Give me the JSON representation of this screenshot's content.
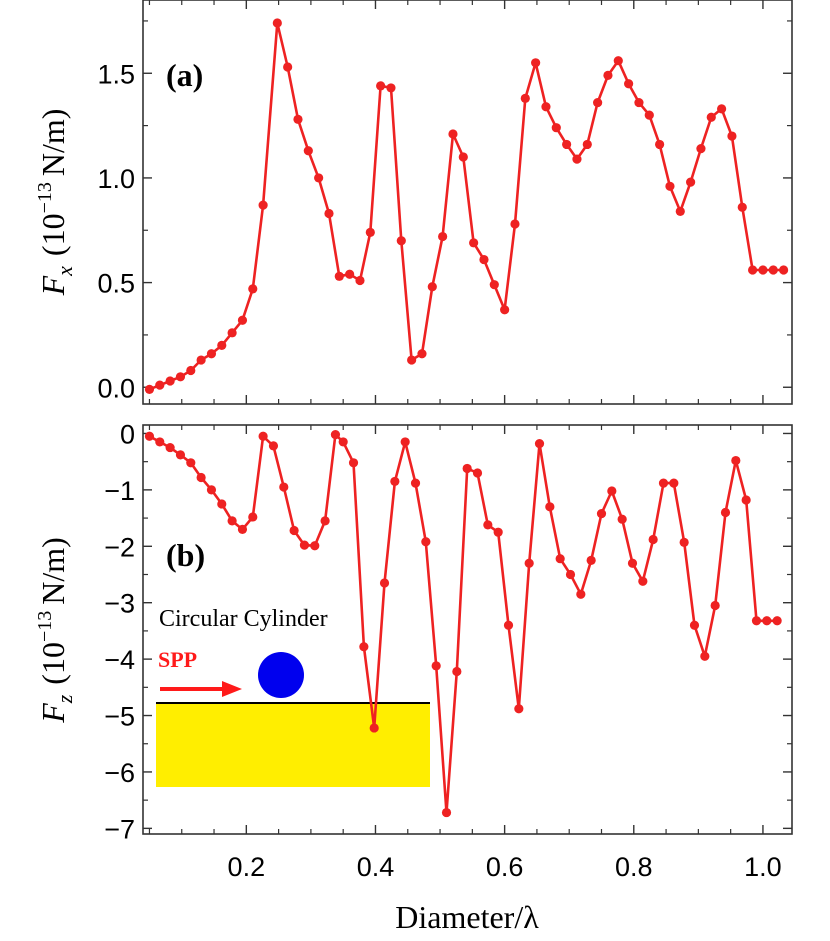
{
  "colors": {
    "series": "#ee2222",
    "substrate": "#ffee00",
    "particle": "#0000ee",
    "spp": "#ff1a1a"
  },
  "x_axis": {
    "label": "Diameter/λ",
    "ticks": [
      0.2,
      0.4,
      0.6,
      0.8,
      1.0
    ],
    "tick_labels": [
      "0.2",
      "0.4",
      "0.6",
      "0.8",
      "1.0"
    ]
  },
  "inset": {
    "title": "Circular Cylinder",
    "arrow_label": "SPP"
  },
  "chart_data": [
    {
      "type": "line",
      "panel_label": "(a)",
      "ylabel_symbol": "F",
      "ylabel_sub": "x",
      "ylabel_unit_pre": "(10",
      "ylabel_exp": "−13",
      "ylabel_unit_post": "N/m)",
      "xlim": [
        0.04,
        1.045
      ],
      "ylim": [
        -0.08,
        1.85
      ],
      "yticks": [
        0.0,
        0.5,
        1.0,
        1.5
      ],
      "ytick_labels": [
        "0.0",
        "0.5",
        "1.0",
        "1.5"
      ],
      "x": [
        0.05,
        0.066,
        0.082,
        0.098,
        0.114,
        0.13,
        0.146,
        0.162,
        0.178,
        0.194,
        0.21,
        0.226,
        0.248,
        0.264,
        0.28,
        0.296,
        0.312,
        0.328,
        0.344,
        0.36,
        0.376,
        0.392,
        0.408,
        0.424,
        0.44,
        0.456,
        0.472,
        0.488,
        0.504,
        0.52,
        0.536,
        0.552,
        0.568,
        0.584,
        0.6,
        0.616,
        0.632,
        0.648,
        0.664,
        0.68,
        0.696,
        0.712,
        0.728,
        0.744,
        0.76,
        0.776,
        0.792,
        0.808,
        0.824,
        0.84,
        0.856,
        0.872,
        0.888,
        0.904,
        0.92,
        0.936,
        0.952,
        0.968,
        0.984,
        1.0,
        1.016,
        1.032
      ],
      "y": [
        -0.01,
        0.01,
        0.03,
        0.05,
        0.08,
        0.13,
        0.16,
        0.2,
        0.26,
        0.32,
        0.47,
        0.87,
        1.74,
        1.53,
        1.28,
        1.13,
        1.0,
        0.83,
        0.53,
        0.54,
        0.51,
        0.74,
        1.44,
        1.43,
        0.7,
        0.13,
        0.16,
        0.48,
        0.72,
        1.21,
        1.1,
        0.69,
        0.61,
        0.49,
        0.37,
        0.78,
        1.38,
        1.55,
        1.34,
        1.24,
        1.16,
        1.09,
        1.16,
        1.36,
        1.49,
        1.56,
        1.45,
        1.36,
        1.3,
        1.16,
        0.96,
        0.84,
        0.98,
        1.14,
        1.29,
        1.33,
        1.2,
        0.86,
        0.56,
        0.56,
        0.56,
        0.56
      ],
      "title": "",
      "xlabel": "",
      "grid": false
    },
    {
      "type": "line",
      "panel_label": "(b)",
      "ylabel_symbol": "F",
      "ylabel_sub": "z",
      "ylabel_unit_pre": "(10",
      "ylabel_exp": "−13",
      "ylabel_unit_post": "N/m)",
      "xlim": [
        0.04,
        1.045
      ],
      "ylim": [
        -7.1,
        0.15
      ],
      "yticks": [
        0,
        -1,
        -2,
        -3,
        -4,
        -5,
        -6,
        -7
      ],
      "ytick_labels": [
        "0",
        "−1",
        "−2",
        "−3",
        "−4",
        "−5",
        "−6",
        "−7"
      ],
      "x": [
        0.05,
        0.066,
        0.082,
        0.098,
        0.114,
        0.13,
        0.146,
        0.162,
        0.178,
        0.194,
        0.21,
        0.226,
        0.242,
        0.258,
        0.274,
        0.29,
        0.306,
        0.322,
        0.338,
        0.35,
        0.366,
        0.382,
        0.398,
        0.414,
        0.43,
        0.446,
        0.462,
        0.478,
        0.494,
        0.51,
        0.526,
        0.542,
        0.558,
        0.574,
        0.59,
        0.606,
        0.622,
        0.638,
        0.654,
        0.67,
        0.686,
        0.702,
        0.718,
        0.734,
        0.75,
        0.766,
        0.782,
        0.798,
        0.814,
        0.83,
        0.846,
        0.862,
        0.878,
        0.894,
        0.91,
        0.926,
        0.942,
        0.958,
        0.974,
        0.99,
        1.006,
        1.022
      ],
      "y": [
        -0.05,
        -0.15,
        -0.25,
        -0.38,
        -0.52,
        -0.78,
        -1.0,
        -1.25,
        -1.55,
        -1.7,
        -1.48,
        -0.05,
        -0.22,
        -0.95,
        -1.72,
        -1.98,
        -1.99,
        -1.55,
        -0.02,
        -0.15,
        -0.52,
        -3.78,
        -5.22,
        -2.65,
        -0.85,
        -0.15,
        -0.88,
        -1.92,
        -4.12,
        -6.72,
        -4.22,
        -0.62,
        -0.7,
        -1.62,
        -1.75,
        -3.4,
        -4.88,
        -2.3,
        -0.18,
        -1.3,
        -2.22,
        -2.5,
        -2.85,
        -2.25,
        -1.42,
        -1.02,
        -1.52,
        -2.3,
        -2.62,
        -1.88,
        -0.88,
        -0.88,
        -1.93,
        -3.4,
        -3.95,
        -3.05,
        -1.4,
        -0.48,
        -1.18,
        -3.32,
        -3.32,
        -3.32
      ],
      "title": "",
      "xlabel": "Diameter/λ",
      "grid": false
    }
  ]
}
